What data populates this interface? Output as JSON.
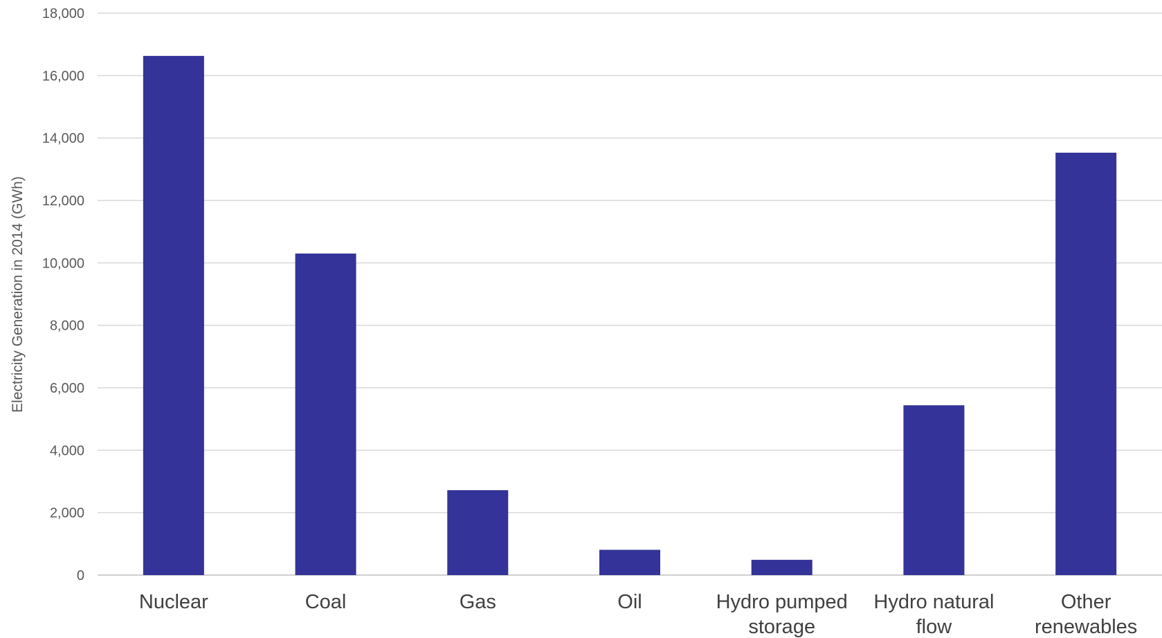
{
  "chart_data": {
    "type": "bar",
    "title": "",
    "xlabel": "",
    "ylabel": "Electricity Generation in 2014 (GWh)",
    "categories": [
      [
        "Nuclear"
      ],
      [
        "Coal"
      ],
      [
        "Gas"
      ],
      [
        "Oil"
      ],
      [
        "Hydro pumped",
        "storage"
      ],
      [
        "Hydro natural",
        "flow"
      ],
      [
        "Other",
        "renewables"
      ]
    ],
    "values": [
      16630,
      10300,
      2720,
      810,
      490,
      5440,
      13530
    ],
    "ylim": [
      0,
      18000
    ],
    "yticks": [
      0,
      2000,
      4000,
      6000,
      8000,
      10000,
      12000,
      14000,
      16000,
      18000
    ],
    "ytick_labels": [
      "0",
      "2,000",
      "4,000",
      "6,000",
      "8,000",
      "10,000",
      "12,000",
      "14,000",
      "16,000",
      "18,000"
    ],
    "grid": true,
    "legend": "none",
    "colors": {
      "bar": "#333399",
      "grid": "#d9d9d9",
      "tick_text": "#595959",
      "category_text": "#404040"
    }
  }
}
